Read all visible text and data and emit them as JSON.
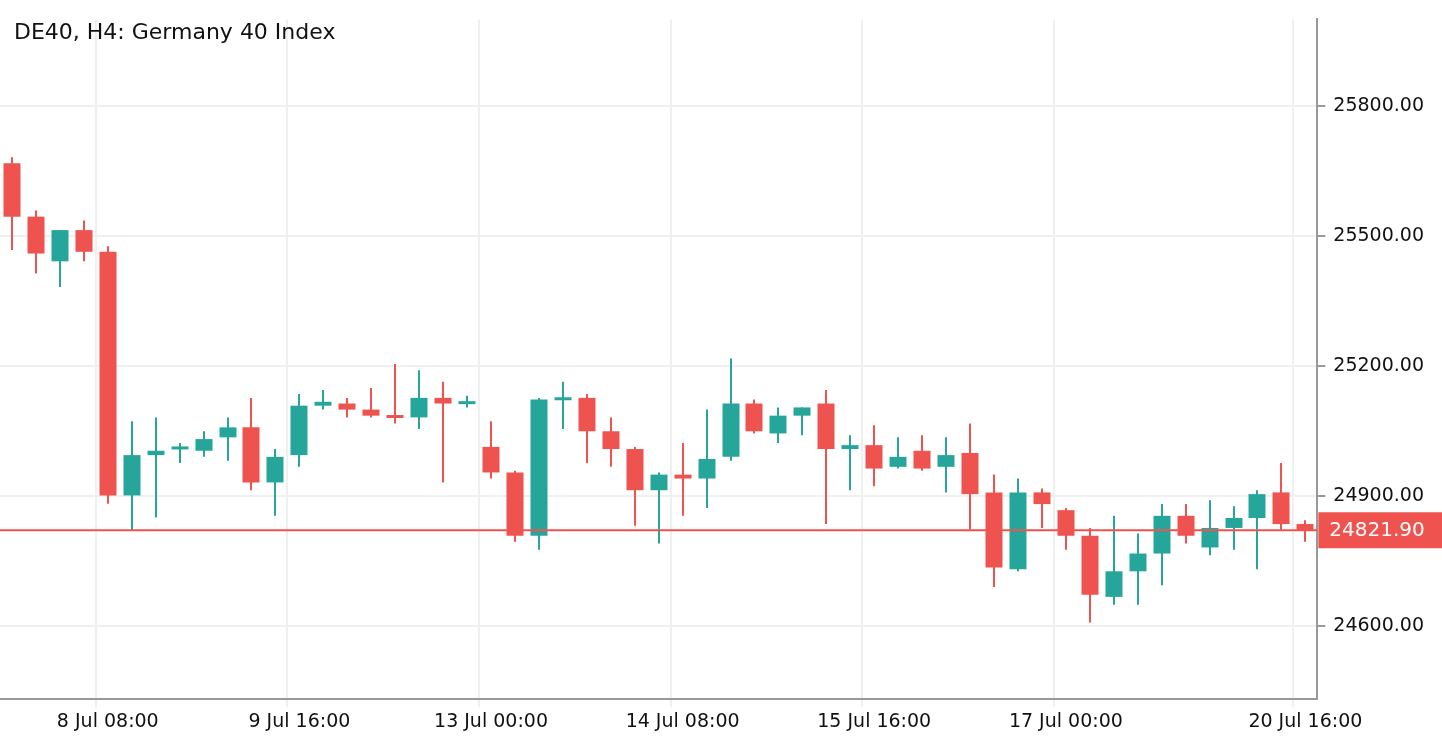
{
  "chart_data": {
    "type": "candlestick",
    "title": "DE40, H4: Germany 40 Index",
    "categories": [
      null,
      null,
      null,
      null,
      "8 Jul 08:00",
      null,
      null,
      null,
      null,
      null,
      null,
      null,
      "9 Jul 16:00",
      null,
      null,
      null,
      null,
      null,
      null,
      null,
      "13 Jul 00:00",
      null,
      null,
      null,
      null,
      null,
      null,
      null,
      "14 Jul 08:00",
      null,
      null,
      null,
      null,
      null,
      null,
      null,
      "15 Jul 16:00",
      null,
      null,
      null,
      null,
      null,
      null,
      null,
      "17 Jul 00:00",
      null,
      null,
      null,
      null,
      null,
      null,
      null,
      null,
      null,
      "20 Jul 16:00"
    ],
    "ohlc": [
      [
        25668,
        25682,
        25468,
        25545
      ],
      [
        25545,
        25559,
        25414,
        25460
      ],
      [
        25442,
        25514,
        25383,
        25514
      ],
      [
        25514,
        25536,
        25442,
        25464
      ],
      [
        25464,
        25477,
        24883,
        24902
      ],
      [
        24902,
        25073,
        24822,
        24995
      ],
      [
        24995,
        25082,
        24851,
        25005
      ],
      [
        25009,
        25023,
        24977,
        25014
      ],
      [
        25005,
        25050,
        24991,
        25032
      ],
      [
        25036,
        25082,
        24982,
        25059
      ],
      [
        25059,
        25127,
        24914,
        24932
      ],
      [
        24932,
        25009,
        24855,
        24991
      ],
      [
        24995,
        25136,
        24968,
        25109
      ],
      [
        25109,
        25145,
        25100,
        25118
      ],
      [
        25114,
        25127,
        25082,
        25100
      ],
      [
        25100,
        25150,
        25082,
        25086
      ],
      [
        25086,
        25205,
        25068,
        25082
      ],
      [
        25082,
        25191,
        25055,
        25127
      ],
      [
        25127,
        25164,
        24932,
        25114
      ],
      [
        25114,
        25132,
        25105,
        25118
      ],
      [
        25014,
        25073,
        24941,
        24955
      ],
      [
        24955,
        24959,
        24795,
        24809
      ],
      [
        24809,
        25127,
        24777,
        25123
      ],
      [
        25123,
        25164,
        25055,
        25127
      ],
      [
        25127,
        25136,
        24977,
        25050
      ],
      [
        25050,
        25082,
        24968,
        25009
      ],
      [
        25009,
        25014,
        24832,
        24914
      ],
      [
        24914,
        24955,
        24791,
        24950
      ],
      [
        24950,
        25023,
        24855,
        24941
      ],
      [
        24941,
        25100,
        24873,
        24986
      ],
      [
        24991,
        25218,
        24982,
        25114
      ],
      [
        25114,
        25123,
        25045,
        25050
      ],
      [
        25045,
        25105,
        25023,
        25086
      ],
      [
        25086,
        25105,
        25041,
        25105
      ],
      [
        25114,
        25145,
        24836,
        25009
      ],
      [
        25009,
        25041,
        24914,
        25018
      ],
      [
        25018,
        25064,
        24923,
        24964
      ],
      [
        24968,
        25036,
        24964,
        24991
      ],
      [
        25005,
        25041,
        24959,
        24964
      ],
      [
        24968,
        25036,
        24909,
        24995
      ],
      [
        25000,
        25068,
        24823,
        24905
      ],
      [
        24909,
        24950,
        24691,
        24736
      ],
      [
        24732,
        24941,
        24727,
        24909
      ],
      [
        24909,
        24918,
        24827,
        24882
      ],
      [
        24868,
        24873,
        24777,
        24809
      ],
      [
        24809,
        24827,
        24609,
        24673
      ],
      [
        24668,
        24855,
        24650,
        24727
      ],
      [
        24727,
        24814,
        24650,
        24768
      ],
      [
        24768,
        24882,
        24695,
        24855
      ],
      [
        24855,
        24882,
        24791,
        24809
      ],
      [
        24782,
        24891,
        24764,
        24827
      ],
      [
        24827,
        24877,
        24777,
        24850
      ],
      [
        24850,
        24914,
        24732,
        24905
      ],
      [
        24909,
        24977,
        24823,
        24836
      ],
      [
        24836,
        24845,
        24795,
        24821.9
      ]
    ],
    "colors": [
      "#ef5350",
      "#ef5350",
      "#26a69a",
      "#ef5350",
      "#ef5350",
      "#26a69a",
      "#26a69a",
      "#26a69a",
      "#26a69a",
      "#26a69a",
      "#ef5350",
      "#26a69a",
      "#26a69a",
      "#26a69a",
      "#ef5350",
      "#ef5350",
      "#ef5350",
      "#26a69a",
      "#ef5350",
      "#26a69a",
      "#ef5350",
      "#ef5350",
      "#26a69a",
      "#26a69a",
      "#ef5350",
      "#ef5350",
      "#ef5350",
      "#26a69a",
      "#ef5350",
      "#26a69a",
      "#26a69a",
      "#ef5350",
      "#26a69a",
      "#26a69a",
      "#ef5350",
      "#26a69a",
      "#ef5350",
      "#26a69a",
      "#ef5350",
      "#26a69a",
      "#ef5350",
      "#ef5350",
      "#26a69a",
      "#ef5350",
      "#ef5350",
      "#ef5350",
      "#26a69a",
      "#26a69a",
      "#26a69a",
      "#ef5350",
      "#26a69a",
      "#26a69a",
      "#26a69a",
      "#ef5350",
      "#ef5350"
    ],
    "ylim": [
      24432,
      26000
    ],
    "yticks": [
      {
        "value": 24600,
        "label": "24600.00"
      },
      {
        "value": 24900,
        "label": "24900.00"
      },
      {
        "value": 25200,
        "label": "25200.00"
      },
      {
        "value": 25500,
        "label": "25500.00"
      },
      {
        "value": 25800,
        "label": "25800.00"
      }
    ],
    "grid": true,
    "ref_lines": [
      {
        "axis": "y",
        "value": 24821.9,
        "label": "24821.90",
        "color": "#ef5350"
      }
    ]
  }
}
